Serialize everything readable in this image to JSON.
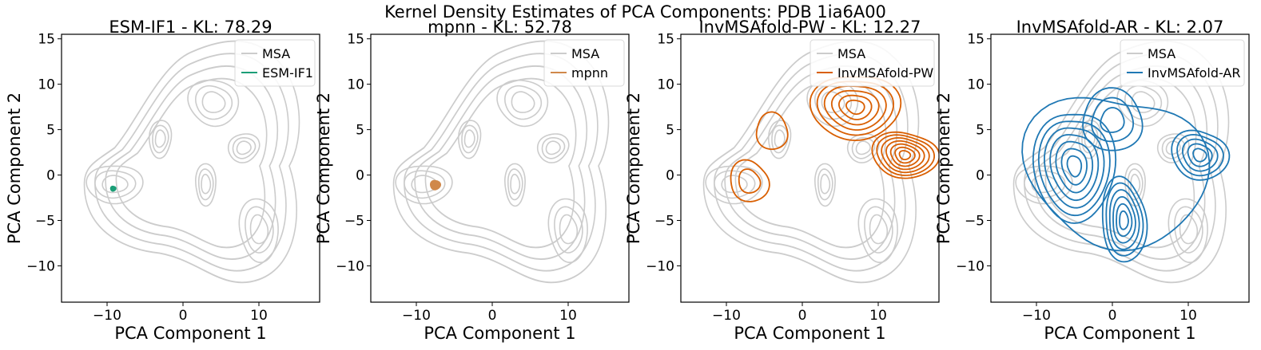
{
  "figure_title": "Kernel Density Estimates of PCA Components: PDB 1ia6A00",
  "colors": {
    "msa": "#cccccc",
    "esm": "#1b9e77",
    "mpnn": "#d0884a",
    "pw": "#d95f02",
    "ar": "#1f78b4",
    "axis": "#000000"
  },
  "chart_data": [
    {
      "type": "kde-contour",
      "title": "ESM-IF1 - KL: 78.29",
      "xlabel": "PCA Component 1",
      "ylabel": "PCA Component 2",
      "xlim": [
        -16,
        18
      ],
      "ylim": [
        -14,
        15.5
      ],
      "xticks": [
        -10,
        0,
        10
      ],
      "yticks": [
        -10,
        -5,
        0,
        5,
        10,
        15
      ],
      "legend": {
        "position": "top-right",
        "entries": [
          "MSA",
          "ESM-IF1"
        ]
      },
      "series": [
        {
          "name": "MSA",
          "color_key": "msa",
          "description": "reference density, modes near (-9,-1), (4,8), (10,-6), (3,-1)"
        },
        {
          "name": "ESM-IF1",
          "color_key": "esm",
          "kind": "filled-blob",
          "center": [
            -9.2,
            -1.5
          ],
          "radius": [
            0.35,
            0.3
          ]
        }
      ]
    },
    {
      "type": "kde-contour",
      "title": "mpnn - KL: 52.78",
      "xlabel": "PCA Component 1",
      "ylabel": "PCA Component 2",
      "xlim": [
        -16,
        18
      ],
      "ylim": [
        -14,
        15.5
      ],
      "xticks": [
        -10,
        0,
        10
      ],
      "yticks": [
        -10,
        -5,
        0,
        5,
        10,
        15
      ],
      "legend": {
        "position": "top-right",
        "entries": [
          "MSA",
          "mpnn"
        ]
      },
      "series": [
        {
          "name": "MSA",
          "color_key": "msa"
        },
        {
          "name": "mpnn",
          "color_key": "mpnn",
          "kind": "filled-blob",
          "center": [
            -7.5,
            -1.1
          ],
          "radius": [
            0.65,
            0.55
          ]
        }
      ]
    },
    {
      "type": "kde-contour",
      "title": "InvMSAfold-PW - KL: 12.27",
      "xlabel": "PCA Component 1",
      "ylabel": "PCA Component 2",
      "xlim": [
        -16,
        18
      ],
      "ylim": [
        -14,
        15.5
      ],
      "xticks": [
        -10,
        0,
        10
      ],
      "yticks": [
        -10,
        -5,
        0,
        5,
        10,
        15
      ],
      "legend": {
        "position": "top-right",
        "entries": [
          "MSA",
          "InvMSAfold-PW"
        ]
      },
      "series": [
        {
          "name": "MSA",
          "color_key": "msa"
        },
        {
          "name": "InvMSAfold-PW",
          "color_key": "pw",
          "kind": "contours",
          "modes": [
            [
              7,
              7.5
            ],
            [
              13.5,
              2.2
            ],
            [
              -7,
              -0.7
            ],
            [
              -4,
              4.8
            ]
          ]
        }
      ]
    },
    {
      "type": "kde-contour",
      "title": "InvMSAfold-AR - KL: 2.07",
      "xlabel": "PCA Component 1",
      "ylabel": "PCA Component 2",
      "xlim": [
        -16,
        18
      ],
      "ylim": [
        -14,
        15.5
      ],
      "xticks": [
        -10,
        0,
        10
      ],
      "yticks": [
        -10,
        -5,
        0,
        5,
        10,
        15
      ],
      "legend": {
        "position": "top-right",
        "entries": [
          "MSA",
          "InvMSAfold-AR"
        ]
      },
      "series": [
        {
          "name": "MSA",
          "color_key": "msa"
        },
        {
          "name": "InvMSAfold-AR",
          "color_key": "ar",
          "kind": "contours",
          "modes": [
            [
              -5,
              1
            ],
            [
              11.5,
              2.2
            ],
            [
              1.5,
              -5
            ],
            [
              0,
              6
            ]
          ]
        }
      ]
    }
  ]
}
